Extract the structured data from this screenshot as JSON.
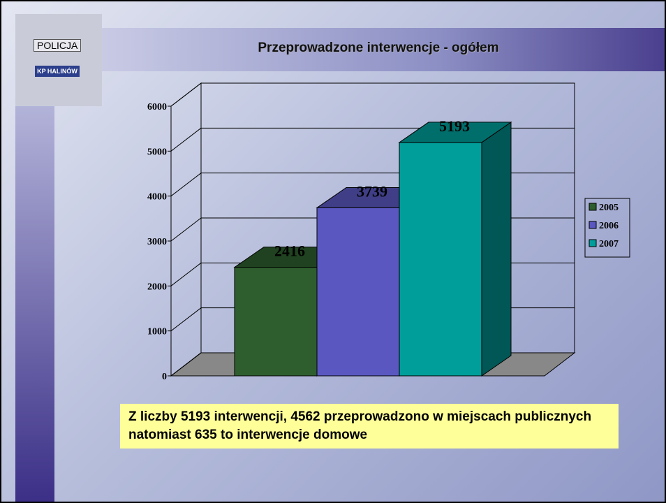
{
  "logo": {
    "top": "POLICJA",
    "bottom": "KP HALINÓW"
  },
  "chart_data": {
    "type": "bar3d",
    "title": "Przeprowadzone interwencje - ogółem",
    "categories": [
      null
    ],
    "series": [
      {
        "name": "2005",
        "color": "#2e5e2e",
        "values": [
          2416
        ]
      },
      {
        "name": "2006",
        "color": "#5a58c0",
        "values": [
          3739
        ]
      },
      {
        "name": "2007",
        "color": "#009e9a",
        "values": [
          5193
        ]
      }
    ],
    "ylim": [
      0,
      6000
    ],
    "yticks": [
      0,
      1000,
      2000,
      3000,
      4000,
      5000,
      6000
    ],
    "grid": true,
    "legend": "right",
    "annotation": "Z liczby 5193 interwencji, 4562 przeprowadzono w miejscach publicznych natomiast 635 to interwencje domowe"
  }
}
